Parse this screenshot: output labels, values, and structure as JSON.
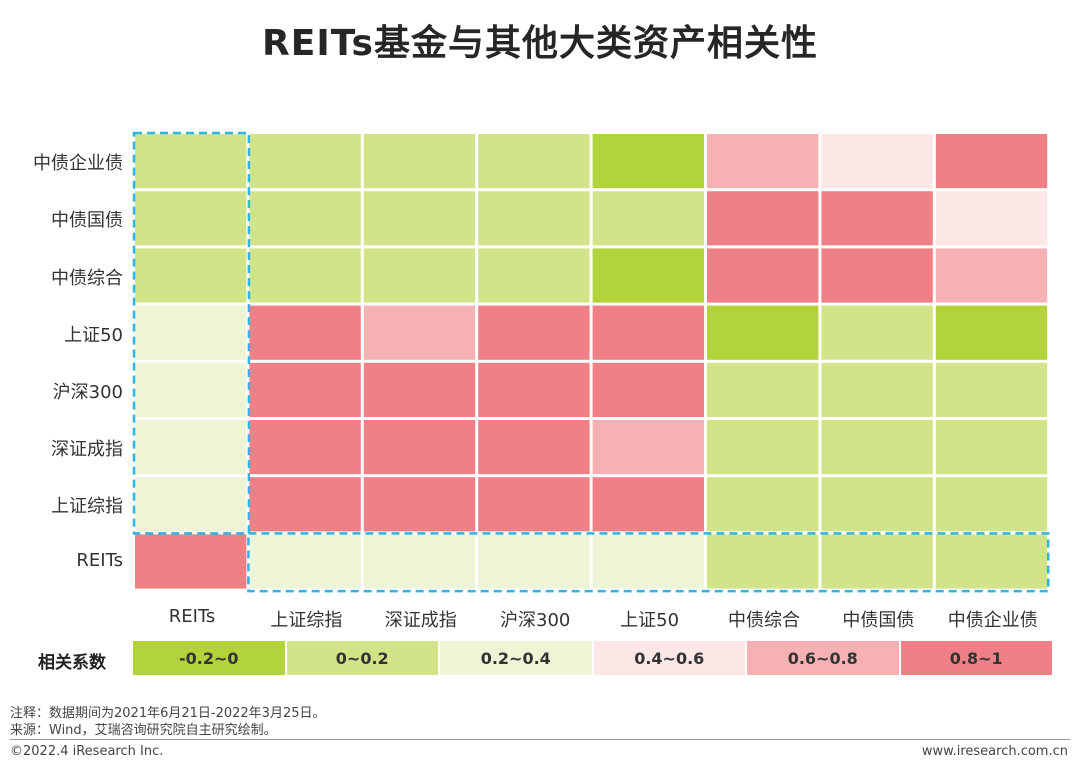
{
  "title": "REITs基金与其他大类资产相关性",
  "chart_data": {
    "type": "heatmap",
    "title": "REITs基金与其他大类资产相关性",
    "rows": [
      "中债企业债",
      "中债国债",
      "中债综合",
      "上证50",
      "沪深300",
      "深证成指",
      "上证综指",
      "REITs"
    ],
    "columns": [
      "REITs",
      "上证综指",
      "深证成指",
      "沪深300",
      "上证50",
      "中债综合",
      "中债国债",
      "中债企业债"
    ],
    "bin_matrix": [
      [
        1,
        1,
        1,
        1,
        0,
        4,
        3,
        5
      ],
      [
        1,
        1,
        1,
        1,
        1,
        5,
        5,
        3
      ],
      [
        1,
        1,
        1,
        1,
        0,
        5,
        5,
        4
      ],
      [
        2,
        5,
        4,
        5,
        5,
        0,
        1,
        0
      ],
      [
        2,
        5,
        5,
        5,
        5,
        1,
        1,
        1
      ],
      [
        2,
        5,
        5,
        5,
        4,
        1,
        1,
        1
      ],
      [
        2,
        5,
        5,
        5,
        5,
        1,
        1,
        1
      ],
      [
        5,
        2,
        2,
        2,
        2,
        1,
        1,
        1
      ]
    ],
    "legend_title": "相关系数",
    "bins": [
      {
        "label": "-0.2~0",
        "range": [
          -0.2,
          0
        ],
        "color": "#b3d33a"
      },
      {
        "label": "0~0.2",
        "range": [
          0,
          0.2
        ],
        "color": "#d1e48a"
      },
      {
        "label": "0.2~0.4",
        "range": [
          0.2,
          0.4
        ],
        "color": "#eef4d6"
      },
      {
        "label": "0.4~0.6",
        "range": [
          0.4,
          0.6
        ],
        "color": "#fde6e6"
      },
      {
        "label": "0.6~0.8",
        "range": [
          0.6,
          0.8
        ],
        "color": "#f6b1b4"
      },
      {
        "label": "0.8~1",
        "range": [
          0.8,
          1
        ],
        "color": "#f08085"
      }
    ],
    "highlight_color": "#2fb4e3"
  },
  "notes": {
    "note": "注释：数据期间为2021年6月21日-2022年3月25日。",
    "source": "来源：Wind，艾瑞咨询研究院自主研究绘制。"
  },
  "footer": {
    "copyright": "©2022.4 iResearch Inc.",
    "website": "www.iresearch.com.cn"
  }
}
